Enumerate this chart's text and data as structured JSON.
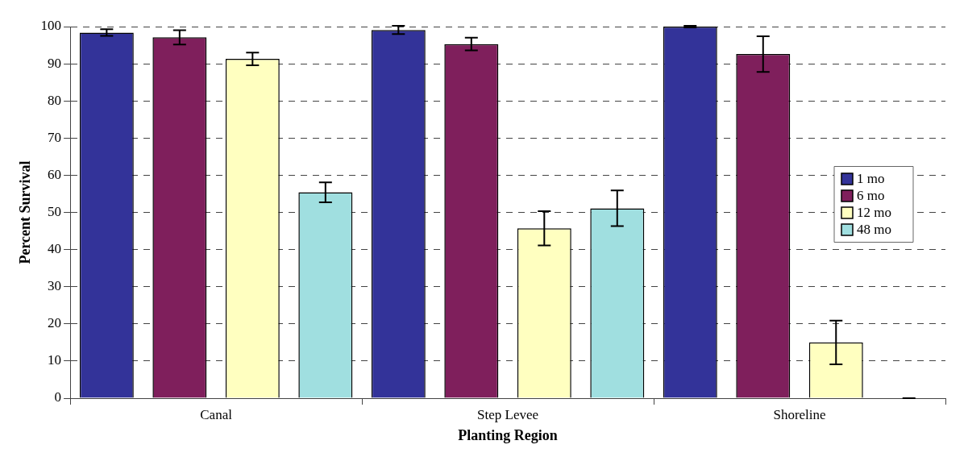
{
  "chart_data": {
    "type": "bar",
    "xlabel": "Planting Region",
    "ylabel": "Percent Survival",
    "categories": [
      "Canal",
      "Step Levee",
      "Shoreline"
    ],
    "series": [
      {
        "name": "1 mo",
        "color": "#333399",
        "values": [
          98.4,
          99.1,
          100
        ],
        "errors": [
          0.9,
          1.1,
          0.2
        ]
      },
      {
        "name": "6 mo",
        "color": "#7f1f5c",
        "values": [
          97.1,
          95.3,
          92.6
        ],
        "errors": [
          1.9,
          1.7,
          4.8
        ]
      },
      {
        "name": "12 mo",
        "color": "#ffffc0",
        "values": [
          91.3,
          45.7,
          15.0
        ],
        "errors": [
          1.7,
          4.6,
          5.9
        ]
      },
      {
        "name": "48 mo",
        "color": "#a0dfe0",
        "values": [
          55.4,
          51.1,
          0
        ],
        "errors": [
          2.7,
          4.8,
          0
        ]
      }
    ],
    "ylim": [
      0,
      100
    ],
    "yticks": [
      0,
      10,
      20,
      30,
      40,
      50,
      60,
      70,
      80,
      90,
      100
    ],
    "grid": "y",
    "legend": "right"
  }
}
